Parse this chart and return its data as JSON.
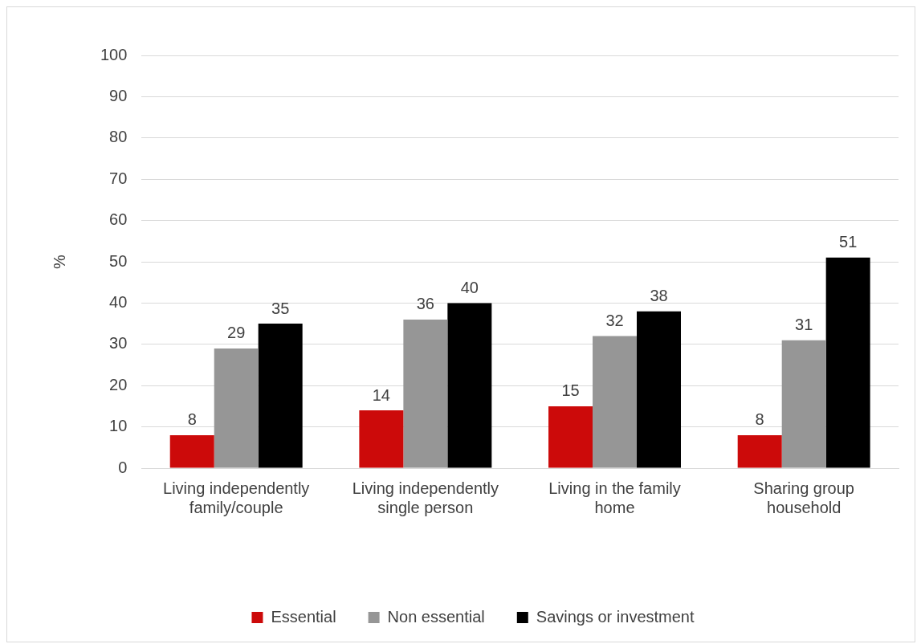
{
  "chart_data": {
    "type": "bar",
    "ylabel": "%",
    "categories": [
      "Living independently family/couple",
      "Living independently single person",
      "Living in the family home",
      "Sharing group household"
    ],
    "series": [
      {
        "name": "Essential",
        "color": "#cc0a0a",
        "values": [
          8,
          14,
          15,
          8
        ]
      },
      {
        "name": "Non essential",
        "color": "#969696",
        "values": [
          29,
          36,
          32,
          31
        ]
      },
      {
        "name": "Savings or investment",
        "color": "#000000",
        "values": [
          35,
          40,
          38,
          51
        ]
      }
    ],
    "ylim": [
      0,
      100
    ],
    "yticks": [
      0,
      10,
      20,
      30,
      40,
      50,
      60,
      70,
      80,
      90,
      100
    ],
    "grid": "y",
    "legend": "bottom",
    "data_labels": true
  }
}
